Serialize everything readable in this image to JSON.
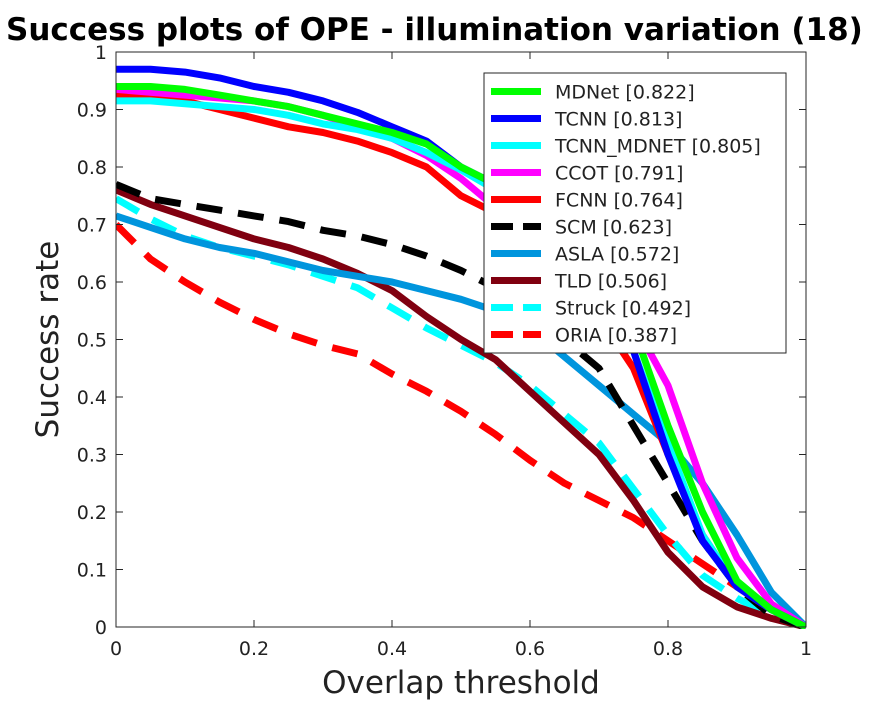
{
  "chart_data": {
    "type": "line",
    "title": "Success plots of OPE - illumination variation (18)",
    "xlabel": "Overlap threshold",
    "ylabel": "Success rate",
    "xlim": [
      0,
      1
    ],
    "ylim": [
      0,
      1
    ],
    "x_ticks": [
      "0",
      "0.2",
      "0.4",
      "0.6",
      "0.8",
      "1"
    ],
    "y_ticks": [
      "0",
      "0.1",
      "0.2",
      "0.3",
      "0.4",
      "0.5",
      "0.6",
      "0.7",
      "0.8",
      "0.9",
      "1"
    ],
    "grid": false,
    "legend_position": "top-right",
    "x": [
      0,
      0.05,
      0.1,
      0.15,
      0.2,
      0.25,
      0.3,
      0.35,
      0.4,
      0.45,
      0.5,
      0.55,
      0.6,
      0.65,
      0.7,
      0.75,
      0.8,
      0.85,
      0.9,
      0.95,
      1
    ],
    "series": [
      {
        "name": "MDNet [0.822]",
        "color": "#00ff00",
        "dash": false,
        "values": [
          0.94,
          0.94,
          0.935,
          0.925,
          0.915,
          0.905,
          0.89,
          0.875,
          0.86,
          0.84,
          0.8,
          0.77,
          0.72,
          0.65,
          0.6,
          0.52,
          0.35,
          0.2,
          0.08,
          0.03,
          0.0
        ]
      },
      {
        "name": "TCNN [0.813]",
        "color": "#0000ff",
        "dash": false,
        "values": [
          0.97,
          0.97,
          0.965,
          0.955,
          0.94,
          0.93,
          0.915,
          0.895,
          0.87,
          0.845,
          0.8,
          0.77,
          0.71,
          0.64,
          0.6,
          0.48,
          0.3,
          0.15,
          0.07,
          0.03,
          0.0
        ]
      },
      {
        "name": "TCNN_MDNET [0.805]",
        "color": "#00ffff",
        "dash": false,
        "values": [
          0.915,
          0.915,
          0.91,
          0.905,
          0.9,
          0.89,
          0.875,
          0.865,
          0.85,
          0.825,
          0.795,
          0.76,
          0.7,
          0.63,
          0.58,
          0.48,
          0.32,
          0.16,
          0.07,
          0.03,
          0.0
        ]
      },
      {
        "name": "CCOT [0.791]",
        "color": "#ff00ff",
        "dash": false,
        "values": [
          0.935,
          0.93,
          0.925,
          0.92,
          0.915,
          0.905,
          0.89,
          0.87,
          0.85,
          0.82,
          0.78,
          0.73,
          0.68,
          0.63,
          0.58,
          0.53,
          0.42,
          0.25,
          0.12,
          0.04,
          0.0
        ]
      },
      {
        "name": "FCNN [0.764]",
        "color": "#ff0000",
        "dash": false,
        "values": [
          0.925,
          0.92,
          0.915,
          0.9,
          0.885,
          0.87,
          0.86,
          0.845,
          0.825,
          0.8,
          0.75,
          0.72,
          0.67,
          0.6,
          0.54,
          0.45,
          0.3,
          0.16,
          0.07,
          0.03,
          0.0
        ]
      },
      {
        "name": "SCM [0.623]",
        "color": "#000000",
        "dash": true,
        "values": [
          0.77,
          0.745,
          0.735,
          0.725,
          0.715,
          0.705,
          0.69,
          0.68,
          0.665,
          0.645,
          0.62,
          0.59,
          0.55,
          0.5,
          0.45,
          0.35,
          0.25,
          0.15,
          0.07,
          0.02,
          0.0
        ]
      },
      {
        "name": "ASLA [0.572]",
        "color": "#0095dd",
        "dash": false,
        "values": [
          0.715,
          0.695,
          0.675,
          0.66,
          0.65,
          0.635,
          0.62,
          0.61,
          0.6,
          0.585,
          0.57,
          0.55,
          0.52,
          0.47,
          0.42,
          0.37,
          0.32,
          0.25,
          0.16,
          0.06,
          0.0
        ]
      },
      {
        "name": "TLD [0.506]",
        "color": "#800010",
        "dash": false,
        "values": [
          0.76,
          0.735,
          0.715,
          0.695,
          0.675,
          0.66,
          0.64,
          0.615,
          0.585,
          0.54,
          0.5,
          0.465,
          0.41,
          0.355,
          0.3,
          0.22,
          0.13,
          0.07,
          0.035,
          0.015,
          0.0
        ]
      },
      {
        "name": "Struck [0.492]",
        "color": "#00ffff",
        "dash": true,
        "values": [
          0.745,
          0.71,
          0.68,
          0.66,
          0.645,
          0.63,
          0.61,
          0.59,
          0.555,
          0.52,
          0.49,
          0.46,
          0.42,
          0.37,
          0.32,
          0.24,
          0.16,
          0.09,
          0.05,
          0.02,
          0.0
        ]
      },
      {
        "name": "ORIA [0.387]",
        "color": "#ff0000",
        "dash": true,
        "values": [
          0.7,
          0.64,
          0.6,
          0.565,
          0.535,
          0.51,
          0.49,
          0.475,
          0.44,
          0.41,
          0.375,
          0.335,
          0.29,
          0.25,
          0.22,
          0.19,
          0.15,
          0.11,
          0.07,
          0.035,
          0.0
        ]
      }
    ]
  }
}
